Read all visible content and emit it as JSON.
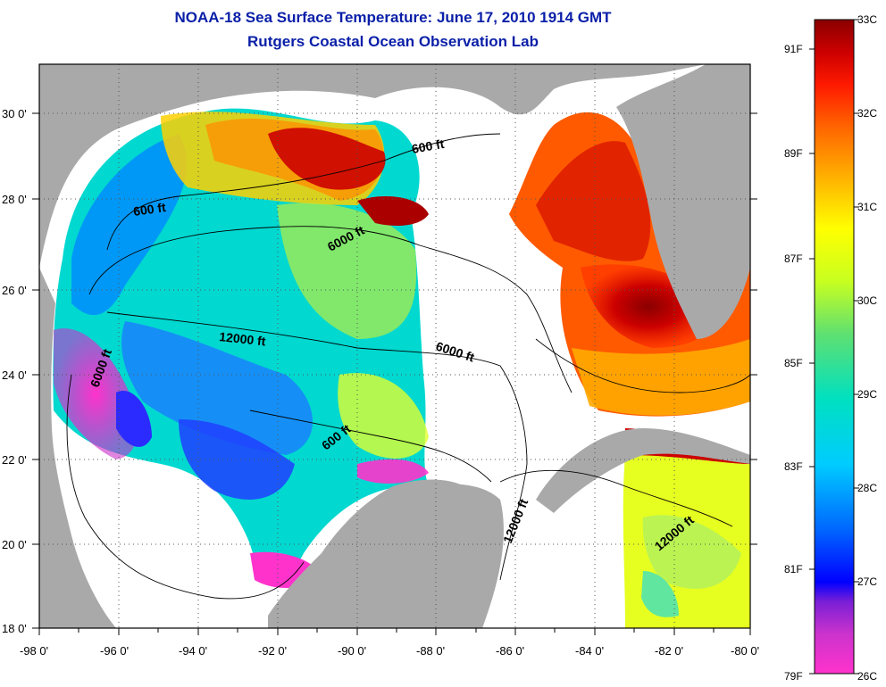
{
  "header": {
    "title": "NOAA-18 Sea Surface Temperature:  June 17, 2010 1914 GMT",
    "subtitle": "Rutgers Coastal Ocean Observation Lab"
  },
  "map": {
    "lon_ticks": [
      "-98 0'",
      "-96 0'",
      "-94 0'",
      "-92 0'",
      "-90 0'",
      "-88 0'",
      "-86 0'",
      "-84 0'",
      "-82 0'",
      "-80 0'"
    ],
    "lat_ticks": [
      "30 0'",
      "28 0'",
      "26 0'",
      "24 0'",
      "22 0'",
      "20 0'",
      "18 0'"
    ],
    "contour_labels": [
      "600 ft",
      "600 ft",
      "6000 ft",
      "12000 ft",
      "6000 ft",
      "6000 ft",
      "600 ft",
      "12000 ft",
      "12000 ft"
    ],
    "land_color": "#a9a9a9",
    "nodata_color": "#ffffff"
  },
  "colorbar": {
    "celsius": [
      "33C",
      "32C",
      "31C",
      "30C",
      "29C",
      "28C",
      "27C",
      "26C"
    ],
    "fahrenheit": [
      "91F",
      "89F",
      "87F",
      "85F",
      "83F",
      "81F",
      "79F"
    ],
    "colors": [
      "#ff33cc",
      "#7a1fd6",
      "#0000ff",
      "#0066ff",
      "#00ccff",
      "#00e0c0",
      "#40e07a",
      "#b8ff2a",
      "#ffff00",
      "#ffb000",
      "#ff6000",
      "#ff1a00",
      "#cc0000",
      "#8a0000"
    ]
  }
}
